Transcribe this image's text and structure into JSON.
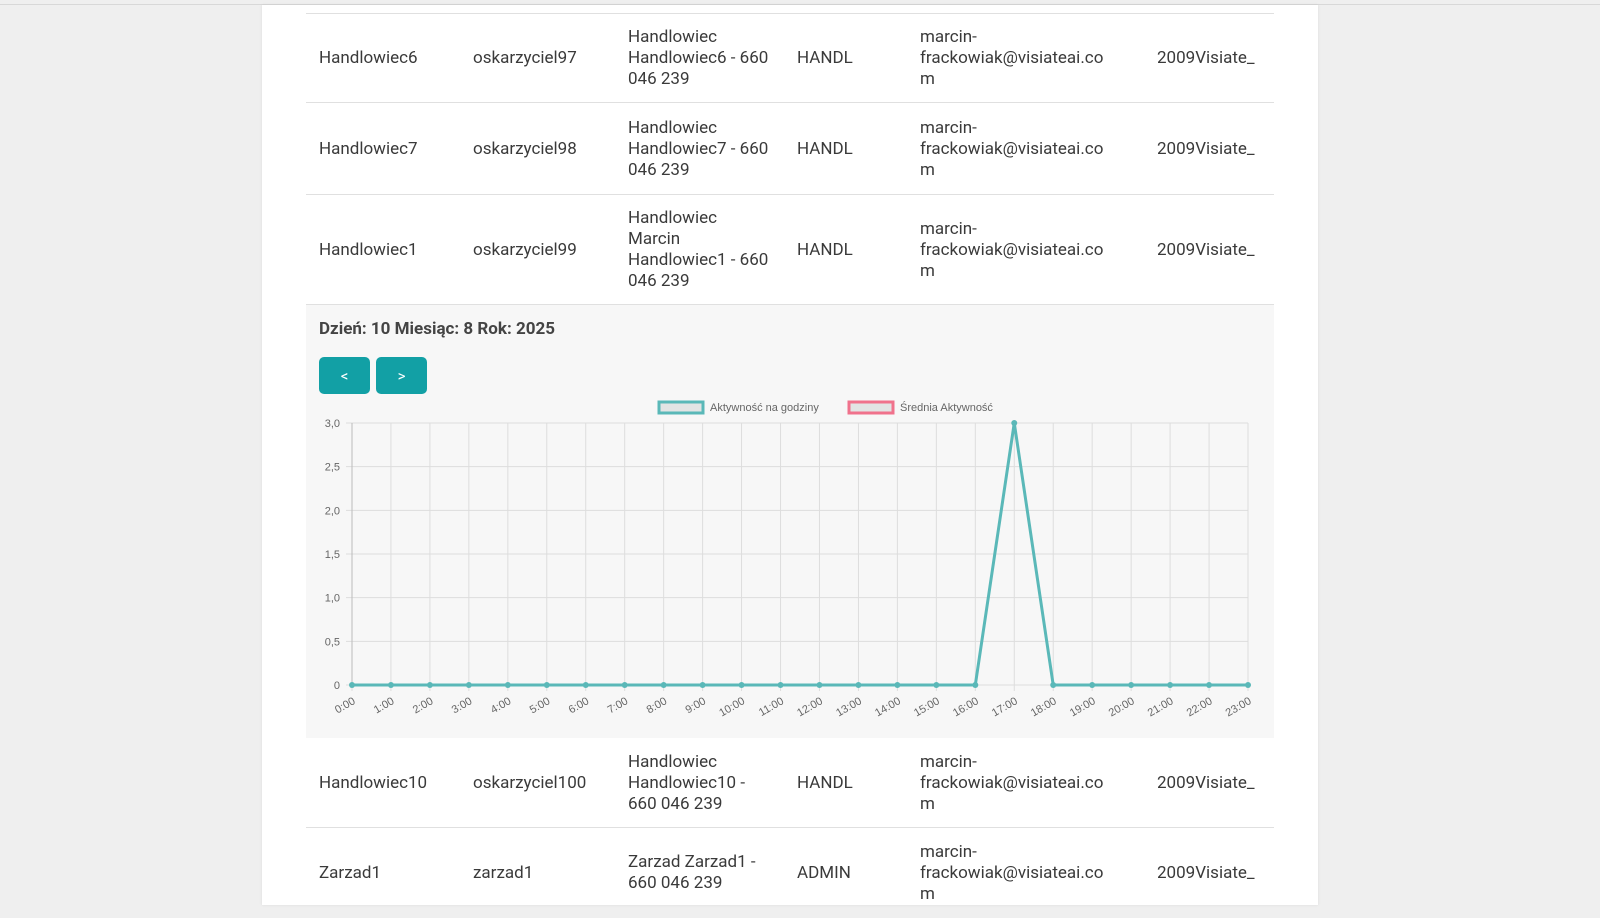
{
  "table": {
    "rows_before": [
      [
        "Handlowiec6",
        "oskarzyciel97",
        "Handlowiec Handlowiec6 - 660 046 239",
        "HANDL",
        "marcin-frackowiak@visiateai.com",
        "2009Visiate_"
      ],
      [
        "Handlowiec7",
        "oskarzyciel98",
        "Handlowiec Handlowiec7 - 660 046 239",
        "HANDL",
        "marcin-frackowiak@visiateai.com",
        "2009Visiate_"
      ],
      [
        "Handlowiec1",
        "oskarzyciel99",
        "Handlowiec Marcin Handlowiec1 - 660 046 239",
        "HANDL",
        "marcin-frackowiak@visiateai.com",
        "2009Visiate_"
      ]
    ],
    "rows_after": [
      [
        "Handlowiec10",
        "oskarzyciel100",
        "Handlowiec Handlowiec10 - 660 046 239",
        "HANDL",
        "marcin-frackowiak@visiateai.com",
        "2009Visiate_"
      ],
      [
        "Zarzad1",
        "zarzad1",
        "Zarzad Zarzad1 - 660 046 239",
        "ADMIN",
        "marcin-frackowiak@visiateai.com",
        "2009Visiate_"
      ]
    ]
  },
  "date_label": "Dzień: 10 Miesiąc: 8 Rok: 2025",
  "buttons": [
    "<",
    ">"
  ],
  "chart_data": {
    "type": "line",
    "categories": [
      "0:00",
      "1:00",
      "2:00",
      "3:00",
      "4:00",
      "5:00",
      "6:00",
      "7:00",
      "8:00",
      "9:00",
      "10:00",
      "11:00",
      "12:00",
      "13:00",
      "14:00",
      "15:00",
      "16:00",
      "17:00",
      "18:00",
      "19:00",
      "20:00",
      "21:00",
      "22:00",
      "23:00"
    ],
    "series": [
      {
        "name": "Aktywność na godziny",
        "color": "#5ab8b8",
        "values": [
          0,
          0,
          0,
          0,
          0,
          0,
          0,
          0,
          0,
          0,
          0,
          0,
          0,
          0,
          0,
          0,
          0,
          3,
          0,
          0,
          0,
          0,
          0,
          0
        ]
      },
      {
        "name": "Średnia Aktywność",
        "color": "#f0728c",
        "values": [
          null,
          null,
          null,
          null,
          null,
          null,
          null,
          null,
          null,
          null,
          null,
          null,
          null,
          null,
          null,
          null,
          null,
          null,
          null,
          null,
          null,
          null,
          null,
          null
        ]
      }
    ],
    "ylim": [
      0,
      3
    ],
    "yticks": [
      0,
      {
        "value": 0.5,
        "label": "0,5"
      },
      {
        "value": 1,
        "label": "1,0"
      },
      {
        "value": 1.5,
        "label": "1,5"
      },
      {
        "value": 2,
        "label": "2,0"
      },
      {
        "value": 2.5,
        "label": "2,5"
      },
      {
        "value": 3,
        "label": "3,0"
      }
    ],
    "grid": true
  }
}
